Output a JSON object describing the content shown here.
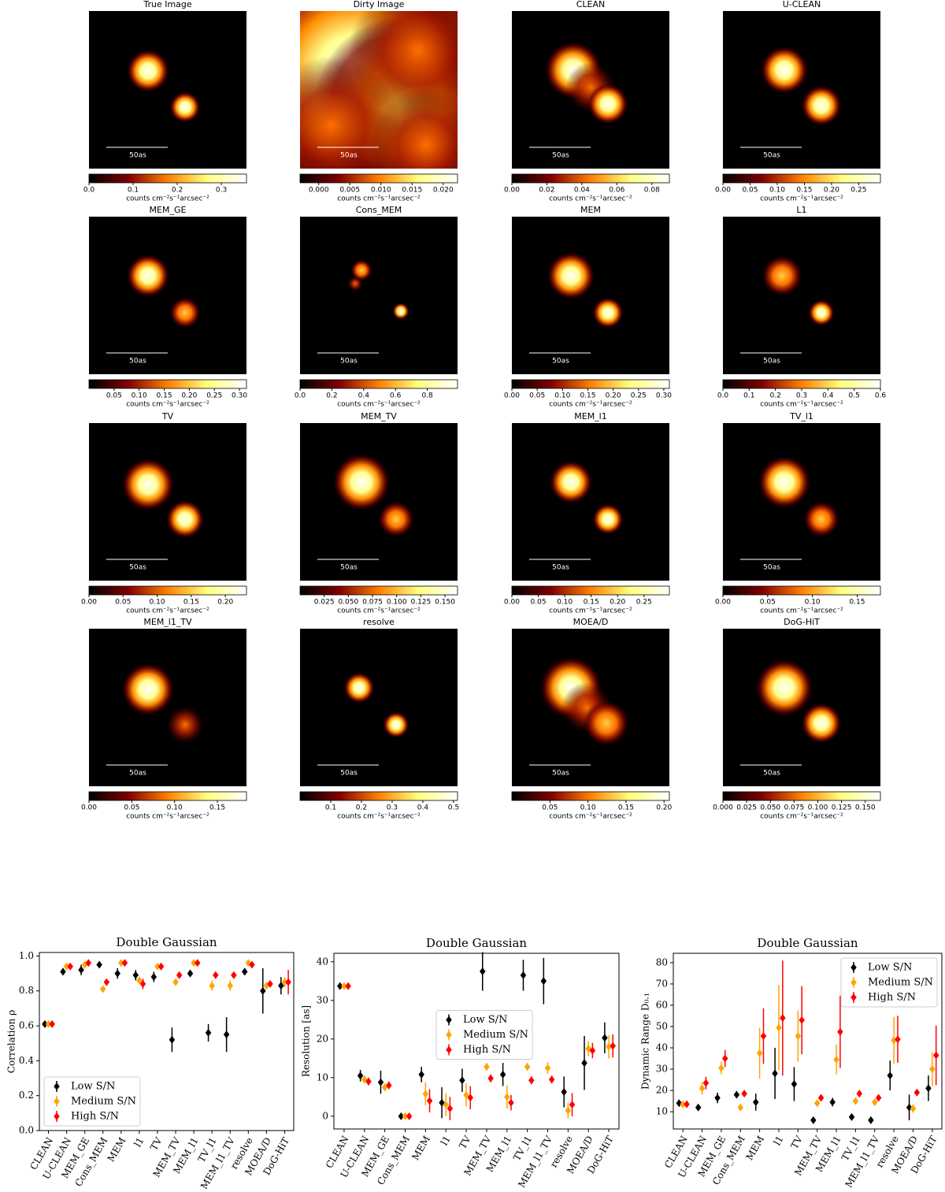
{
  "colorbar_label": "counts cm⁻²s⁻¹arcsec⁻²",
  "scalebar_label": "50as",
  "images": [
    {
      "type": "image",
      "title": "True Image",
      "clim": [
        0,
        0.357
      ],
      "cticks": [
        {
          "value": 0,
          "label": "0.0"
        },
        0.1,
        0.2,
        0.3
      ]
    },
    {
      "type": "image",
      "title": "Dirty Image",
      "clim": [
        -0.003,
        0.0223
      ],
      "cticks": [
        {
          "value": 0,
          "label": "0.000"
        },
        0.005,
        {
          "value": 0.01,
          "label": "0.010"
        },
        0.015,
        {
          "value": 0.02,
          "label": "0.020"
        }
      ]
    },
    {
      "type": "image",
      "title": "CLEAN",
      "clim": [
        0,
        0.09
      ],
      "cticks": [
        {
          "value": 0,
          "label": "0.00"
        },
        0.02,
        0.04,
        0.06,
        0.08
      ]
    },
    {
      "type": "image",
      "title": "U-CLEAN",
      "clim": [
        0,
        0.29
      ],
      "cticks": [
        {
          "value": 0,
          "label": "0.00"
        },
        0.05,
        {
          "value": 0.1,
          "label": "0.10"
        },
        0.15,
        {
          "value": 0.2,
          "label": "0.20"
        },
        0.25
      ]
    },
    {
      "type": "image",
      "title": "MEM_GE",
      "clim": [
        0,
        0.314
      ],
      "cticks": [
        0.05,
        {
          "value": 0.1,
          "label": "0.10"
        },
        0.15,
        {
          "value": 0.2,
          "label": "0.20"
        },
        0.25,
        {
          "value": 0.3,
          "label": "0.30"
        }
      ]
    },
    {
      "type": "image",
      "title": "Cons_MEM",
      "clim": [
        0,
        0.99
      ],
      "cticks": [
        {
          "value": 0,
          "label": "0.0"
        },
        0.2,
        0.4,
        0.6,
        0.8
      ]
    },
    {
      "type": "image",
      "title": "MEM",
      "clim": [
        0,
        0.311
      ],
      "cticks": [
        {
          "value": 0,
          "label": "0.00"
        },
        0.05,
        {
          "value": 0.1,
          "label": "0.10"
        },
        0.15,
        {
          "value": 0.2,
          "label": "0.20"
        },
        0.25,
        {
          "value": 0.3,
          "label": "0.30"
        }
      ]
    },
    {
      "type": "image",
      "title": "L1",
      "clim": [
        0,
        0.6
      ],
      "cticks": [
        {
          "value": 0,
          "label": "0.0"
        },
        0.1,
        0.2,
        0.3,
        0.4,
        0.5,
        0.6
      ]
    },
    {
      "type": "image",
      "title": "TV",
      "clim": [
        0,
        0.231
      ],
      "cticks": [
        {
          "value": 0,
          "label": "0.00"
        },
        0.05,
        {
          "value": 0.1,
          "label": "0.10"
        },
        0.15,
        {
          "value": 0.2,
          "label": "0.20"
        }
      ]
    },
    {
      "type": "image",
      "title": "MEM_TV",
      "clim": [
        0,
        0.163
      ],
      "cticks": [
        0.025,
        {
          "value": 0.05,
          "label": "0.050"
        },
        0.075,
        {
          "value": 0.1,
          "label": "0.100"
        },
        0.125,
        {
          "value": 0.15,
          "label": "0.150"
        }
      ]
    },
    {
      "type": "image",
      "title": "MEM_l1",
      "clim": [
        0,
        0.298
      ],
      "cticks": [
        {
          "value": 0,
          "label": "0.00"
        },
        0.05,
        {
          "value": 0.1,
          "label": "0.10"
        },
        0.15,
        {
          "value": 0.2,
          "label": "0.20"
        },
        0.25
      ]
    },
    {
      "type": "image",
      "title": "TV_l1",
      "clim": [
        0,
        0.176
      ],
      "cticks": [
        {
          "value": 0,
          "label": "0.00"
        },
        0.05,
        {
          "value": 0.1,
          "label": "0.10"
        },
        0.15
      ]
    },
    {
      "type": "image",
      "title": "MEM_l1_TV",
      "clim": [
        0,
        0.184
      ],
      "cticks": [
        {
          "value": 0,
          "label": "0.00"
        },
        0.05,
        {
          "value": 0.1,
          "label": "0.10"
        },
        0.15
      ]
    },
    {
      "type": "image",
      "title": "resolve",
      "clim": [
        0,
        0.513
      ],
      "cticks": [
        0.1,
        0.2,
        0.3,
        0.4,
        0.5
      ]
    },
    {
      "type": "image",
      "title": "MOEA/D",
      "clim": [
        0,
        0.207
      ],
      "cticks": [
        0.05,
        {
          "value": 0.1,
          "label": "0.10"
        },
        0.15,
        {
          "value": 0.2,
          "label": "0.20"
        }
      ]
    },
    {
      "type": "image",
      "title": "DoG-HiT",
      "clim": [
        0,
        0.166
      ],
      "cticks": [
        {
          "value": 0,
          "label": "0.000"
        },
        0.025,
        {
          "value": 0.05,
          "label": "0.050"
        },
        0.075,
        {
          "value": 0.1,
          "label": "0.100"
        },
        0.125,
        {
          "value": 0.15,
          "label": "0.150"
        }
      ]
    }
  ],
  "chart_data": [
    {
      "type": "errorbar",
      "title": "Double Gaussian",
      "y_label": "Correlation ρ",
      "legend": "lower left",
      "categories": [
        "CLEAN",
        "U-CLEAN",
        "MEM_GE",
        "Cons_MEM",
        "MEM",
        "l1",
        "TV",
        "MEM_TV",
        "MEM_l1",
        "TV_l1",
        "MEM_l1_TV",
        "resolve",
        "MOEA/D",
        "DoG-HiT"
      ],
      "ylim": [
        0,
        1.02
      ],
      "yticks": [
        {
          "value": 0,
          "label": "0.0"
        },
        0.2,
        0.4,
        0.6,
        0.8,
        {
          "value": 1,
          "label": "1.0"
        }
      ],
      "series": [
        {
          "name": "Low S/N",
          "color": "#000000",
          "values": [
            0.61,
            0.91,
            0.92,
            0.95,
            0.9,
            0.89,
            0.88,
            0.52,
            0.9,
            0.56,
            0.55,
            0.91,
            0.8,
            0.83
          ],
          "errors": [
            0.01,
            0.02,
            0.03,
            0.01,
            0.03,
            0.03,
            0.03,
            0.07,
            0.02,
            0.05,
            0.1,
            0.02,
            0.13,
            0.05
          ]
        },
        {
          "name": "Medium S/N",
          "color": "#ffa500",
          "values": [
            0.61,
            0.94,
            0.95,
            0.81,
            0.96,
            0.86,
            0.94,
            0.85,
            0.96,
            0.83,
            0.83,
            0.96,
            0.83,
            0.85
          ],
          "errors": [
            0.01,
            0.01,
            0.01,
            0.01,
            0.01,
            0.02,
            0.01,
            0.01,
            0.01,
            0.03,
            0.03,
            0.01,
            0.02,
            0.03
          ]
        },
        {
          "name": "High S/N",
          "color": "#ff0000",
          "values": [
            0.61,
            0.94,
            0.96,
            0.85,
            0.96,
            0.84,
            0.94,
            0.89,
            0.96,
            0.89,
            0.89,
            0.95,
            0.84,
            0.85
          ],
          "errors": [
            0.01,
            0.01,
            0.01,
            0.01,
            0.01,
            0.03,
            0.01,
            0.01,
            0.01,
            0.01,
            0.01,
            0.01,
            0.01,
            0.07
          ]
        }
      ]
    },
    {
      "type": "errorbar",
      "title": "Double Gaussian",
      "y_label": "Resolution [as]",
      "legend": "center",
      "categories": [
        "CLEAN",
        "U-CLEAN",
        "MEM_GE",
        "Cons_MEM",
        "MEM",
        "l1",
        "TV",
        "MEM_TV",
        "MEM_l1",
        "TV_l1",
        "MEM_l1_TV",
        "resolve",
        "MOEA/D",
        "DoG-HiT"
      ],
      "ylim": [
        -3.3,
        42.2
      ],
      "yticks": [
        0,
        10,
        20,
        30,
        40
      ],
      "series": [
        {
          "name": "Low S/N",
          "color": "#000000",
          "values": [
            33.7,
            10.5,
            8.8,
            0,
            10.8,
            3.5,
            9.3,
            37.5,
            10.8,
            36.5,
            35,
            6.3,
            13.8,
            20.3
          ],
          "errors": [
            0.5,
            1.5,
            3,
            0.3,
            2,
            4,
            3,
            5,
            3,
            4,
            6,
            4,
            7,
            4
          ]
        },
        {
          "name": "Medium S/N",
          "color": "#ffa500",
          "values": [
            33.7,
            9.5,
            7.5,
            0,
            5.8,
            3.0,
            5.5,
            12.8,
            5.0,
            12.8,
            12.5,
            1.5,
            17.5,
            18.0
          ],
          "errors": [
            0.5,
            1,
            1,
            0.3,
            3,
            3,
            3,
            1,
            3,
            1,
            1.5,
            2,
            2,
            3
          ]
        },
        {
          "name": "High S/N",
          "color": "#ff0000",
          "values": [
            33.7,
            9.0,
            8.0,
            0,
            4.0,
            2.0,
            4.8,
            9.8,
            3.5,
            9.3,
            9.5,
            3.0,
            17.0,
            18.2
          ],
          "errors": [
            0.5,
            1,
            1,
            0.3,
            3,
            3,
            3,
            1,
            2,
            1,
            1,
            3,
            2,
            3
          ]
        }
      ]
    },
    {
      "type": "errorbar",
      "title": "Double Gaussian",
      "y_label": "Dynamic Range D₀.₁",
      "legend": "upper right",
      "categories": [
        "CLEAN",
        "U-CLEAN",
        "MEM_GE",
        "Cons_MEM",
        "MEM",
        "l1",
        "TV",
        "MEM_TV",
        "MEM_l1",
        "TV_l1",
        "MEM_l1_TV",
        "resolve",
        "MOEA/D",
        "DoG-HiT"
      ],
      "ylim": [
        1.9,
        84.4
      ],
      "yticks": [
        10,
        20,
        30,
        40,
        50,
        60,
        70,
        80
      ],
      "series": [
        {
          "name": "Low S/N",
          "color": "#000000",
          "values": [
            14,
            12,
            16.5,
            18,
            14.5,
            28,
            23,
            6,
            14.5,
            7.5,
            6,
            27,
            12,
            21
          ],
          "errors": [
            1,
            1.5,
            2.5,
            1,
            4,
            12,
            8,
            1,
            2,
            1,
            1,
            7,
            6,
            6
          ]
        },
        {
          "name": "Medium S/N",
          "color": "#ffa500",
          "values": [
            13.5,
            21,
            30.5,
            12,
            37.5,
            49.5,
            45.5,
            14,
            34.5,
            15,
            14.5,
            43.5,
            11.5,
            30
          ],
          "errors": [
            1,
            3,
            3,
            1,
            12,
            20,
            12,
            1.5,
            7,
            1,
            1,
            11,
            2,
            8
          ]
        },
        {
          "name": "High S/N",
          "color": "#ff0000",
          "values": [
            13.5,
            23.5,
            35,
            18.5,
            45.5,
            54,
            53,
            16.5,
            47.5,
            18.5,
            16.5,
            44,
            19,
            36.5
          ],
          "errors": [
            1,
            3,
            4,
            1,
            13,
            27,
            16,
            1,
            17,
            1,
            1,
            11,
            1,
            14
          ]
        }
      ]
    }
  ]
}
